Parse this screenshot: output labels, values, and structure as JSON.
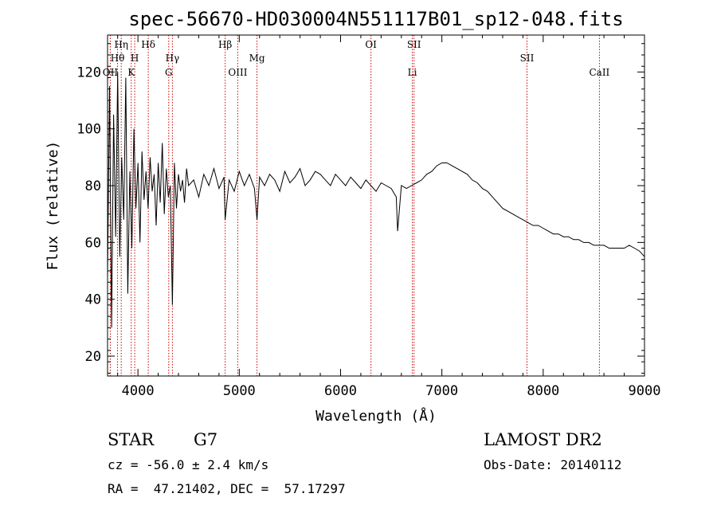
{
  "chart_data": {
    "type": "line",
    "title": "spec-56670-HD030004N551117B01_sp12-048.fits",
    "xlabel": "Wavelength (Å)",
    "ylabel": "Flux (relative)",
    "xlim": [
      3700,
      9000
    ],
    "ylim": [
      13,
      133
    ],
    "xticks": [
      4000,
      5000,
      6000,
      7000,
      8000,
      9000
    ],
    "yticks": [
      20,
      40,
      60,
      80,
      100,
      120
    ],
    "grid": false,
    "series": [
      {
        "x": [
          3700,
          3720,
          3740,
          3760,
          3780,
          3800,
          3820,
          3840,
          3860,
          3880,
          3900,
          3920,
          3940,
          3960,
          3980,
          4000,
          4020,
          4040,
          4060,
          4080,
          4100,
          4120,
          4140,
          4160,
          4180,
          4200,
          4220,
          4240,
          4260,
          4280,
          4300,
          4320,
          4340,
          4360,
          4380,
          4400,
          4420,
          4440,
          4460,
          4480,
          4500,
          4550,
          4600,
          4650,
          4700,
          4750,
          4800,
          4850,
          4861,
          4900,
          4950,
          5000,
          5050,
          5100,
          5150,
          5175,
          5200,
          5250,
          5300,
          5350,
          5400,
          5450,
          5500,
          5550,
          5600,
          5650,
          5700,
          5750,
          5800,
          5850,
          5900,
          5950,
          6000,
          6050,
          6100,
          6150,
          6200,
          6250,
          6300,
          6350,
          6400,
          6450,
          6500,
          6550,
          6563,
          6600,
          6650,
          6700,
          6750,
          6800,
          6850,
          6900,
          6950,
          7000,
          7050,
          7100,
          7150,
          7200,
          7250,
          7300,
          7350,
          7400,
          7450,
          7500,
          7550,
          7600,
          7650,
          7700,
          7750,
          7800,
          7850,
          7900,
          7950,
          8000,
          8050,
          8100,
          8150,
          8200,
          8250,
          8300,
          8350,
          8400,
          8450,
          8500,
          8550,
          8600,
          8650,
          8700,
          8750,
          8800,
          8850,
          8900,
          8950,
          9000
        ],
        "y": [
          48,
          115,
          30,
          105,
          62,
          120,
          55,
          90,
          68,
          118,
          42,
          85,
          58,
          100,
          72,
          88,
          60,
          92,
          75,
          85,
          72,
          90,
          78,
          84,
          66,
          88,
          74,
          95,
          70,
          86,
          76,
          80,
          38,
          88,
          72,
          84,
          78,
          82,
          74,
          86,
          80,
          82,
          76,
          84,
          80,
          86,
          79,
          83,
          68,
          82,
          78,
          85,
          80,
          84,
          79,
          68,
          83,
          80,
          84,
          82,
          78,
          85,
          81,
          83,
          86,
          80,
          82,
          85,
          84,
          82,
          80,
          84,
          82,
          80,
          83,
          81,
          79,
          82,
          80,
          78,
          81,
          80,
          79,
          76,
          64,
          80,
          79,
          80,
          81,
          82,
          84,
          85,
          87,
          88,
          88,
          87,
          86,
          85,
          84,
          82,
          81,
          79,
          78,
          76,
          74,
          72,
          71,
          70,
          69,
          68,
          67,
          66,
          66,
          65,
          64,
          63,
          63,
          62,
          62,
          61,
          61,
          60,
          60,
          59,
          59,
          59,
          58,
          58,
          58,
          58,
          59,
          58,
          57,
          55
        ]
      }
    ],
    "lines": [
      {
        "label": "Hη",
        "x": 3835,
        "row": 0
      },
      {
        "label": "Hθ",
        "x": 3798,
        "row": 1
      },
      {
        "label": "H",
        "x": 3968,
        "row": 1
      },
      {
        "label": "OII",
        "x": 3727,
        "row": 2
      },
      {
        "label": "K",
        "x": 3934,
        "row": 2
      },
      {
        "label": "Hδ",
        "x": 4102,
        "row": 0
      },
      {
        "label": "Hγ",
        "x": 4340,
        "row": 1
      },
      {
        "label": "G",
        "x": 4304,
        "row": 2
      },
      {
        "label": "Hβ",
        "x": 4861,
        "row": 0
      },
      {
        "label": "OIII",
        "x": 4985,
        "row": 2
      },
      {
        "label": "Mg",
        "x": 5175,
        "row": 1
      },
      {
        "label": "OI",
        "x": 6300,
        "row": 0
      },
      {
        "label": "SII",
        "x": 6725,
        "row": 0
      },
      {
        "label": "Li",
        "x": 6708,
        "row": 2
      },
      {
        "label": "SII",
        "x": 7840,
        "row": 1
      },
      {
        "label": "CaII",
        "x": 8555,
        "row": 2
      }
    ]
  },
  "footer": {
    "object_class": "STAR",
    "subclass": "G7",
    "survey": "LAMOST DR2",
    "cz": "cz = -56.0 ± 2.4 km/s",
    "obs_date": "Obs-Date: 20140112",
    "radec": "RA =  47.21402, DEC =  57.17297"
  }
}
